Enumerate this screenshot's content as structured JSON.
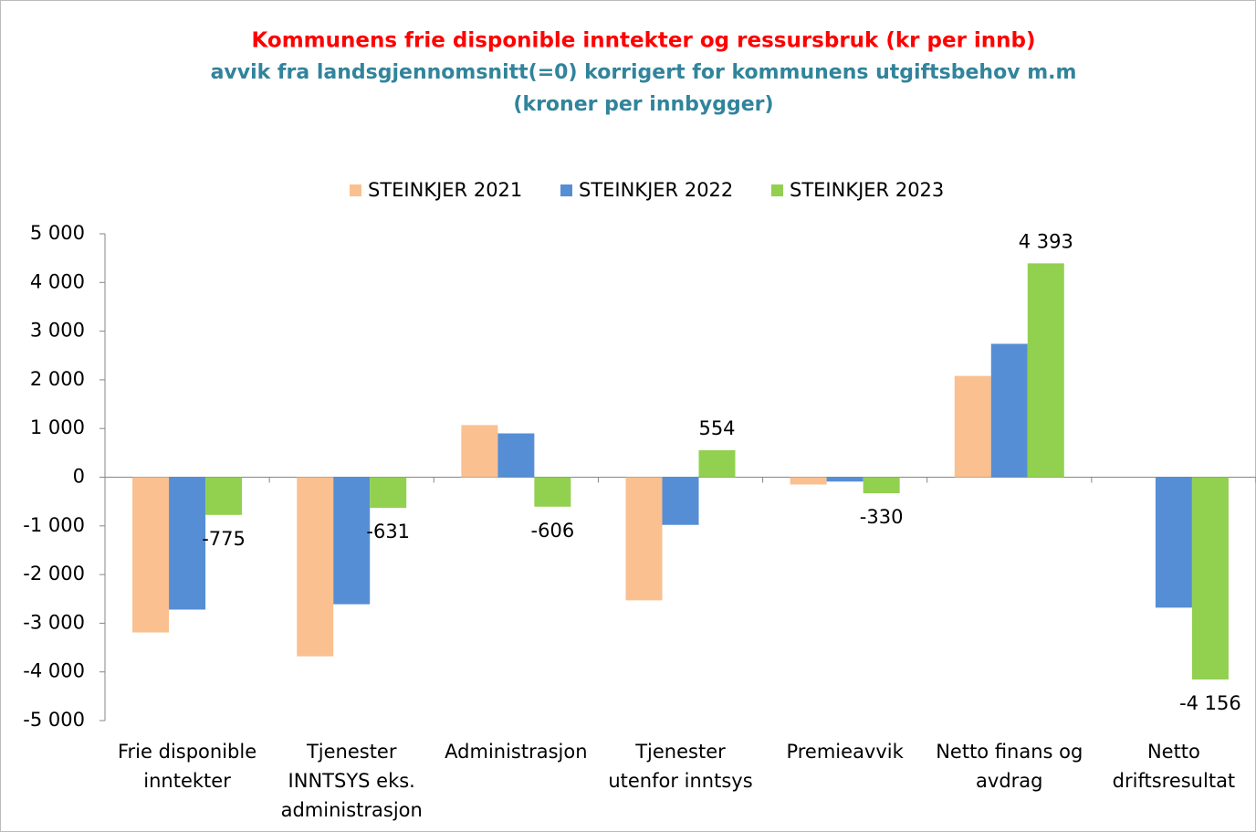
{
  "chart_data": {
    "type": "bar",
    "title": "Kommunens frie disponible inntekter og ressursbruk (kr per innb)",
    "subtitle": "avvik fra landsgjennomsnitt(=0) korrigert for kommunens utgiftsbehov m.m",
    "subtitle2": "(kroner per innbygger)",
    "categories": [
      "Frie disponible\ninntekter",
      "Tjenester\nINNTSYS eks.\nadministrasjon",
      "Administrasjon",
      "Tjenester\nutenfor inntsys",
      "Premieavvik",
      "Netto finans og\navdrag",
      "Netto\ndriftsresultat"
    ],
    "series": [
      {
        "name": "STEINKJER 2021",
        "color": "#fac090",
        "values": [
          -3190,
          -3680,
          1070,
          -2530,
          -150,
          2080,
          null
        ]
      },
      {
        "name": "STEINKJER 2022",
        "color": "#558ed5",
        "values": [
          -2720,
          -2610,
          900,
          -980,
          -90,
          2740,
          -2680
        ]
      },
      {
        "name": "STEINKJER 2023",
        "color": "#92d050",
        "values": [
          -775,
          -631,
          -606,
          554,
          -330,
          4393,
          -4156
        ],
        "value_labels": [
          "-775",
          "-631",
          "-606",
          "554",
          "-330",
          "4 393",
          "-4 156"
        ]
      }
    ],
    "ylim": [
      -5000,
      5000
    ],
    "yticks": [
      {
        "value": -5000,
        "label": "-5 000"
      },
      {
        "value": -4000,
        "label": "-4 000"
      },
      {
        "value": -3000,
        "label": "-3 000"
      },
      {
        "value": -2000,
        "label": "-2 000"
      },
      {
        "value": -1000,
        "label": "-1 000"
      },
      0,
      {
        "value": 1000,
        "label": "1 000"
      },
      {
        "value": 2000,
        "label": "2 000"
      },
      {
        "value": 3000,
        "label": "3 000"
      },
      {
        "value": 4000,
        "label": "4 000"
      },
      {
        "value": 5000,
        "label": "5 000"
      }
    ],
    "legend": "top",
    "grid": false
  }
}
